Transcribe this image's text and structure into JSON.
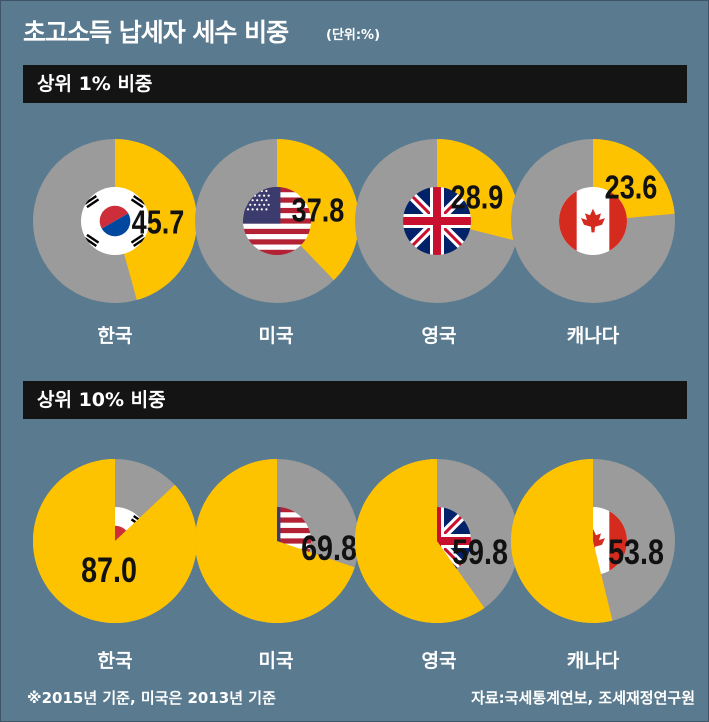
{
  "title": "초고소득 납세자 세수 비중",
  "unit": "(단위:%)",
  "sections": [
    {
      "heading": "상위 1% 비중"
    },
    {
      "heading": "상위 10% 비중"
    }
  ],
  "countries": [
    "한국",
    "미국",
    "영국",
    "캐나다"
  ],
  "footnote": "※2015년 기준, 미국은 2013년 기준",
  "source": "자료:국세통계연보, 조세재정연구원",
  "colors": {
    "slice": "#fdc300",
    "rest": "#9b9b9b",
    "background": "#5a7a8f",
    "bar": "#141414"
  },
  "chart_data": [
    {
      "type": "pie",
      "title": "상위 1% 비중",
      "categories": [
        "한국",
        "미국",
        "영국",
        "캐나다"
      ],
      "values": [
        45.7,
        37.8,
        28.9,
        23.6
      ],
      "labels": [
        "45.7",
        "37.8",
        "28.9",
        "23.6"
      ]
    },
    {
      "type": "pie",
      "title": "상위 10% 비중",
      "categories": [
        "한국",
        "미국",
        "영국",
        "캐나다"
      ],
      "values": [
        87.0,
        69.8,
        59.8,
        53.8
      ],
      "labels": [
        "87.0",
        "69.8",
        "59.8",
        "53.8"
      ]
    }
  ]
}
